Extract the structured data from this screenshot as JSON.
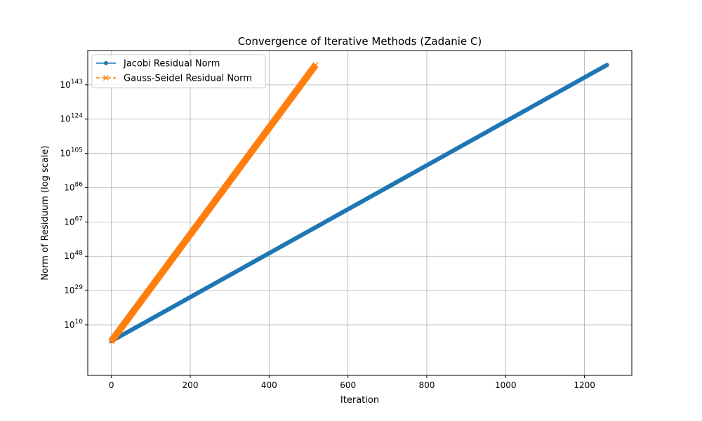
{
  "chart_data": {
    "type": "line",
    "title": "Convergence of Iterative Methods (Zadanie C)",
    "xlabel": "Iteration",
    "ylabel": "Norm of Residuum (log scale)",
    "x_scale": "linear",
    "y_scale": "log",
    "xlim": [
      -60,
      1320
    ],
    "ylim_log10": [
      -18,
      162
    ],
    "x_ticks": [
      0,
      200,
      400,
      600,
      800,
      1000,
      1200
    ],
    "x_tick_labels": [
      "0",
      "200",
      "400",
      "600",
      "800",
      "1000",
      "1200"
    ],
    "y_ticks_log10": [
      10,
      29,
      48,
      67,
      86,
      105,
      124,
      143
    ],
    "y_tick_labels": [
      {
        "base": "10",
        "exp": "10"
      },
      {
        "base": "10",
        "exp": "29"
      },
      {
        "base": "10",
        "exp": "48"
      },
      {
        "base": "10",
        "exp": "67"
      },
      {
        "base": "10",
        "exp": "86"
      },
      {
        "base": "10",
        "exp": "105"
      },
      {
        "base": "10",
        "exp": "124"
      },
      {
        "base": "10",
        "exp": "143"
      }
    ],
    "grid": true,
    "legend_position": "upper-left",
    "series": [
      {
        "name": "Jacobi Residual Norm",
        "color": "#1f77b4",
        "marker": "circle",
        "line_style": "solid",
        "x_range": [
          0,
          1257
        ],
        "log10_range": [
          1,
          154
        ],
        "end_points": [
          {
            "x": 0,
            "y": 10.0
          },
          {
            "x": 1257,
            "y": 1e+154
          }
        ]
      },
      {
        "name": "Gauss-Seidel Residual Norm",
        "color": "#ff7f0e",
        "marker": "x",
        "line_style": "dashed",
        "x_range": [
          0,
          518
        ],
        "log10_range": [
          1,
          154
        ],
        "end_points": [
          {
            "x": 0,
            "y": 10.0
          },
          {
            "x": 518,
            "y": 1e+154
          }
        ]
      }
    ]
  }
}
